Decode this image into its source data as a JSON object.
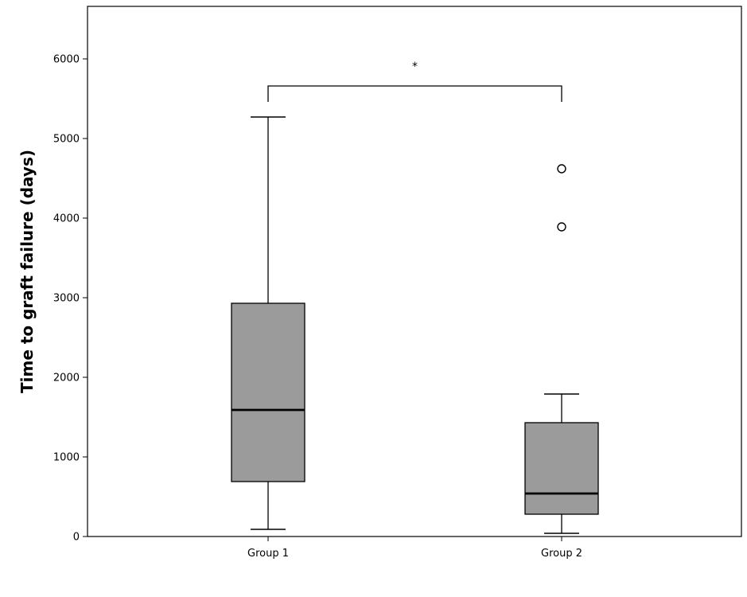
{
  "chart_data": {
    "type": "boxplot",
    "title": "",
    "xlabel": "",
    "ylabel": "Time to graft failure (days)",
    "ylim": [
      0,
      6600
    ],
    "yticks": [
      0,
      1000,
      2000,
      3000,
      4000,
      5000,
      6000
    ],
    "ytick_labels": [
      "0",
      "1000",
      "2000",
      "3000",
      "4000",
      "5000",
      "6000"
    ],
    "categories": [
      "Group 1",
      "Group 2"
    ],
    "boxes": [
      {
        "category": "Group 1",
        "whisker_low": 90,
        "q1": 690,
        "median": 1590,
        "q3": 2930,
        "whisker_high": 5270,
        "outliers": []
      },
      {
        "category": "Group 2",
        "whisker_low": 40,
        "q1": 280,
        "median": 540,
        "q3": 1430,
        "whisker_high": 1790,
        "outliers": [
          3890,
          4620
        ]
      }
    ],
    "significance": {
      "between": [
        "Group 1",
        "Group 2"
      ],
      "label": "*",
      "level": 5660
    },
    "box_fill": "#9b9b9b",
    "grid": false
  }
}
